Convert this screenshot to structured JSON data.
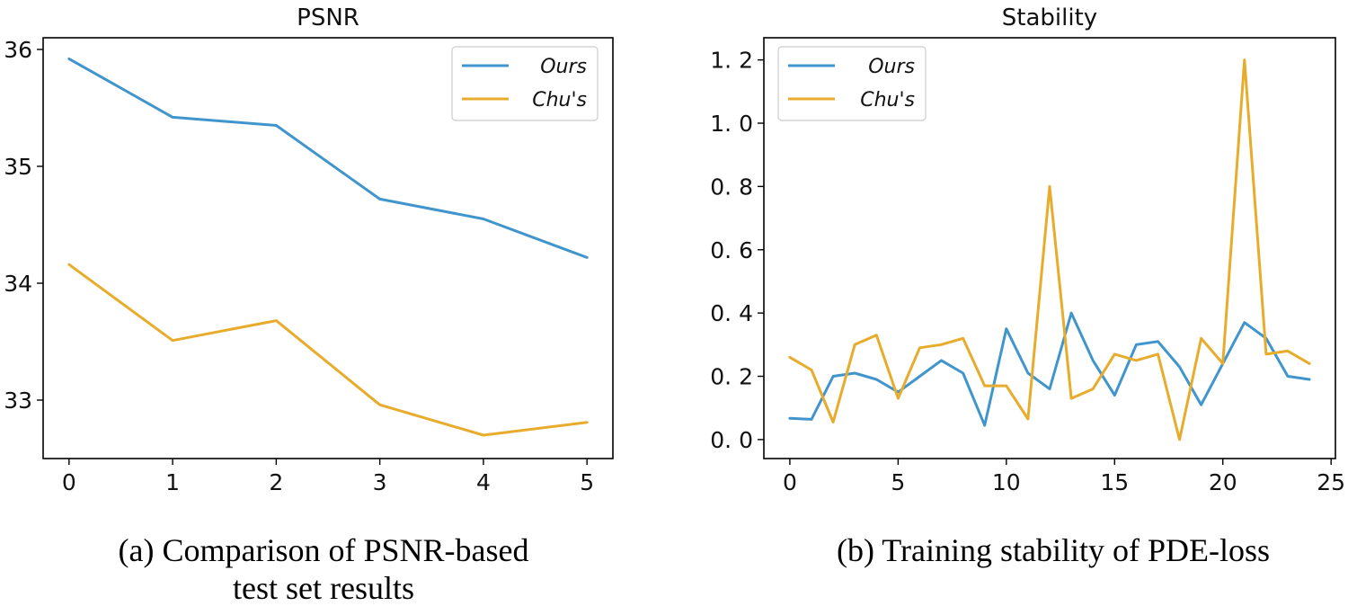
{
  "colors": {
    "ours": "#4195cd",
    "chus": "#e8ac2c"
  },
  "chart_data": [
    {
      "type": "line",
      "title": "PSNR",
      "x": [
        0,
        1,
        2,
        3,
        4,
        5
      ],
      "xlim": [
        -0.25,
        5.25
      ],
      "ylim": [
        32.5,
        36.1
      ],
      "xticks": [
        0,
        1,
        2,
        3,
        4,
        5
      ],
      "yticks": [
        33,
        34,
        35,
        36
      ],
      "legend_position": "upper right",
      "series": [
        {
          "name": "Ours",
          "color": "#4195cd",
          "values": [
            35.92,
            35.42,
            35.35,
            34.72,
            34.55,
            34.22
          ]
        },
        {
          "name": "Chu's",
          "color": "#e8ac2c",
          "values": [
            34.16,
            33.51,
            33.68,
            32.96,
            32.7,
            32.81
          ]
        }
      ],
      "caption": [
        "(a) Comparison of PSNR-based",
        "test set results"
      ]
    },
    {
      "type": "line",
      "title": "Stability",
      "x": [
        0,
        1,
        2,
        3,
        4,
        5,
        6,
        7,
        8,
        9,
        10,
        11,
        12,
        13,
        14,
        15,
        16,
        17,
        18,
        19,
        20,
        21,
        22,
        23,
        24
      ],
      "xlim": [
        -1.2,
        25.2
      ],
      "ylim": [
        -0.06,
        1.27
      ],
      "xticks": [
        0,
        5,
        10,
        15,
        20,
        25
      ],
      "yticks": [
        0.0,
        0.2,
        0.4,
        0.6,
        0.8,
        1.0,
        1.2
      ],
      "ytick_labels": [
        "0. 0",
        "0. 2",
        "0. 4",
        "0. 6",
        "0. 8",
        "1. 0",
        "1. 2"
      ],
      "legend_position": "upper left",
      "series": [
        {
          "name": "Ours",
          "color": "#4195cd",
          "values": [
            0.067,
            0.064,
            0.2,
            0.21,
            0.19,
            0.15,
            0.2,
            0.25,
            0.21,
            0.045,
            0.35,
            0.21,
            0.16,
            0.4,
            0.25,
            0.14,
            0.3,
            0.31,
            0.23,
            0.11,
            0.24,
            0.37,
            0.32,
            0.2,
            0.19
          ]
        },
        {
          "name": "Chu's",
          "color": "#e8ac2c",
          "values": [
            0.26,
            0.22,
            0.055,
            0.3,
            0.33,
            0.13,
            0.29,
            0.3,
            0.32,
            0.17,
            0.17,
            0.065,
            0.8,
            0.13,
            0.16,
            0.27,
            0.25,
            0.27,
            0.0,
            0.32,
            0.24,
            1.2,
            0.27,
            0.28,
            0.24
          ]
        }
      ],
      "caption": [
        "(b) Training stability of PDE-loss"
      ]
    }
  ]
}
